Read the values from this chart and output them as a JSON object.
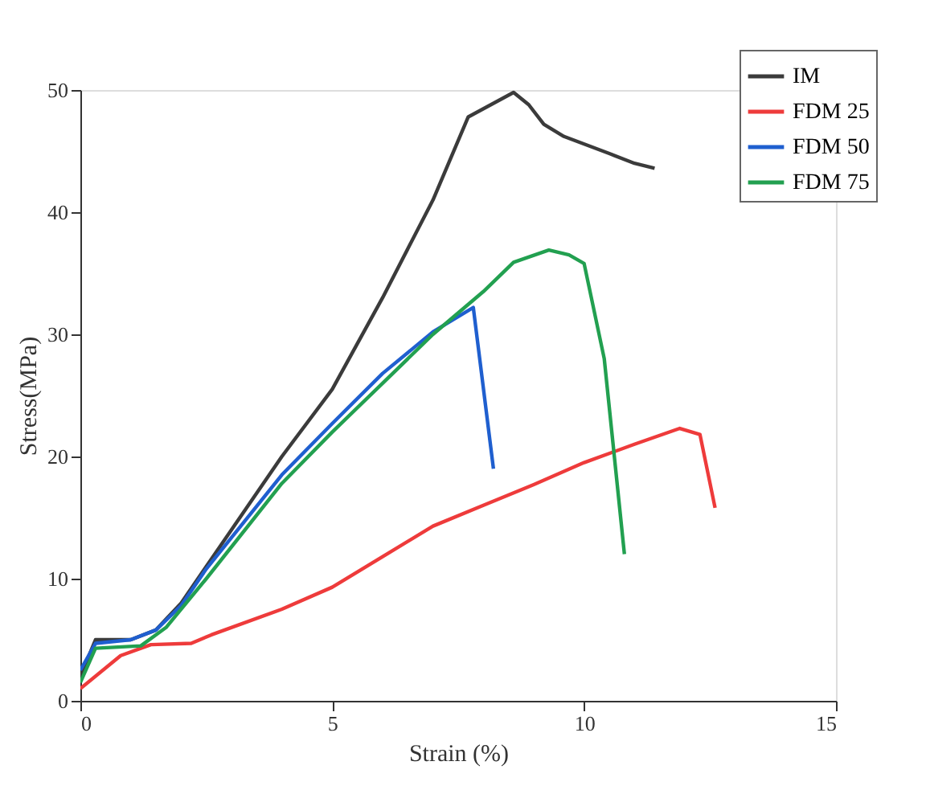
{
  "chart_data": {
    "type": "line",
    "xlabel": "Strain (%)",
    "ylabel": "Stress(MPa)",
    "xlim": [
      0,
      15
    ],
    "xticks": [
      0,
      5,
      10,
      15
    ],
    "ylim": [
      0,
      50
    ],
    "yticks": [
      0,
      10,
      20,
      30,
      40,
      50
    ],
    "grid": false,
    "legend": "top right",
    "marker": "none",
    "line_style": "solid",
    "series": [
      {
        "name": "IM",
        "color": "#3b3b3b",
        "x": [
          0,
          0.3,
          1,
          1.5,
          2,
          2.5,
          4,
          5,
          6,
          7,
          7.7,
          8.6,
          8.9,
          9.2,
          9.6,
          10.5,
          11,
          11.4
        ],
        "values": [
          2,
          5,
          5,
          5.8,
          8,
          11,
          20,
          25.5,
          33,
          41,
          47.8,
          49.8,
          48.8,
          47.2,
          46.2,
          44.8,
          44,
          43.6
        ]
      },
      {
        "name": "FDM 25",
        "color": "#ee3b3b",
        "x": [
          0,
          0.8,
          1.4,
          2.2,
          2.6,
          4,
          5,
          6,
          7,
          8,
          9,
          10,
          11,
          11.9,
          12.3,
          12.6
        ],
        "values": [
          1,
          3.7,
          4.6,
          4.7,
          5.4,
          7.5,
          9.3,
          11.8,
          14.3,
          16,
          17.7,
          19.5,
          21,
          22.3,
          21.8,
          15.8
        ]
      },
      {
        "name": "FDM 50",
        "color": "#1f5fcf",
        "x": [
          0,
          0.3,
          1,
          1.5,
          2,
          2.5,
          4,
          5,
          6,
          7,
          7.8,
          8.2
        ],
        "values": [
          2.5,
          4.7,
          5,
          5.8,
          7.8,
          10.8,
          18.5,
          22.7,
          26.8,
          30.2,
          32.2,
          19
        ]
      },
      {
        "name": "FDM 75",
        "color": "#22a050",
        "x": [
          0,
          0.3,
          1.2,
          1.7,
          2.5,
          4,
          5,
          6,
          7,
          8,
          8.6,
          9.3,
          9.7,
          10,
          10.4,
          10.8
        ],
        "values": [
          1.5,
          4.3,
          4.5,
          6,
          10,
          17.8,
          22,
          26,
          30,
          33.5,
          35.9,
          36.9,
          36.5,
          35.8,
          28,
          12
        ]
      }
    ]
  }
}
